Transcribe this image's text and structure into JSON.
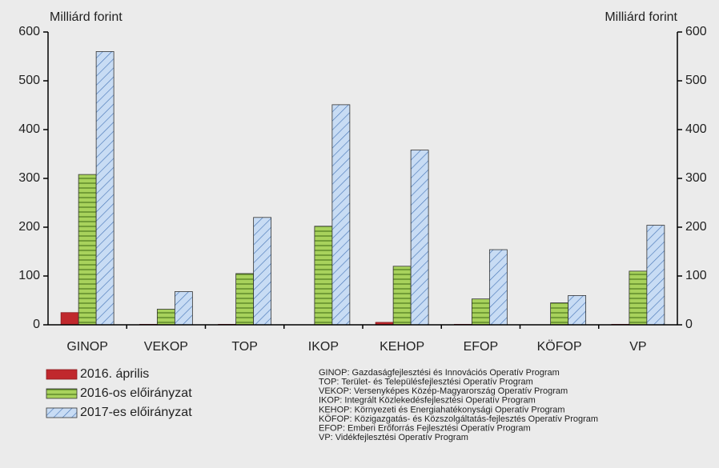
{
  "chart_data": {
    "type": "bar",
    "ylabel": "Milliárd forint",
    "y2label": "Milliárd forint",
    "categories": [
      "GINOP",
      "VEKOP",
      "TOP",
      "IKOP",
      "KEHOP",
      "EFOP",
      "KÖFOP",
      "VP"
    ],
    "series": [
      {
        "name": "2016. április",
        "color": "#c0282d",
        "values": [
          25,
          1,
          1,
          0,
          5,
          1,
          0,
          1
        ]
      },
      {
        "name": "2016-os előirányzat",
        "color": "#a8d25c",
        "values": [
          308,
          32,
          105,
          202,
          120,
          53,
          45,
          110
        ]
      },
      {
        "name": "2017-es előirányzat",
        "color": "#c8dcf4",
        "values": [
          560,
          68,
          220,
          451,
          358,
          154,
          60,
          204
        ]
      }
    ],
    "ylim": [
      0,
      600
    ],
    "yticks": [
      0,
      100,
      200,
      300,
      400,
      500,
      600
    ],
    "y2lim": [
      0,
      600
    ],
    "y2ticks": [
      0,
      100,
      200,
      300,
      400,
      500,
      600
    ],
    "notes": [
      "GINOP: Gazdaságfejlesztési és Innovációs Operatív Program",
      "TOP: Terület- és Településfejlesztési Operatív Program",
      "VEKOP: Versenyképes Közép-Magyarország Operatív Program",
      "IKOP: Integrált Közlekedésfejlesztési Operatív Program",
      "KEHOP: Környezeti és Energiahatékonysági Operatív Program",
      "KÖFOP: Közigazgatás- és Közszolgáltatás-fejlesztés Operatív Program",
      "EFOP: Emberi Erőforrás Fejlesztési Operatív Program",
      "VP: Vidékfejlesztési Operatív Program"
    ]
  }
}
